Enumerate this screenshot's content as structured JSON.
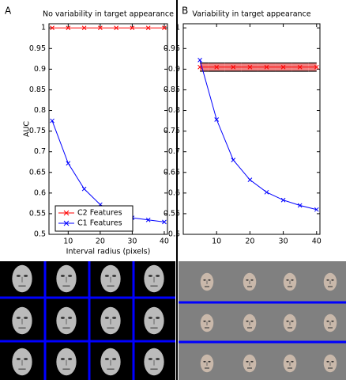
{
  "chart_data": [
    {
      "type": "line",
      "panel": "A",
      "title": "No variability in target appearance",
      "xlabel": "Interval radius (pixels)",
      "ylabel": "AUC",
      "x": [
        5,
        10,
        15,
        20,
        25,
        30,
        35,
        40
      ],
      "series": [
        {
          "name": "C2 Features",
          "color": "#ff0000",
          "values": [
            1,
            1,
            1,
            1,
            1,
            1,
            1,
            1
          ]
        },
        {
          "name": "C1 Features",
          "color": "#0000ff",
          "values": [
            0.775,
            0.672,
            0.61,
            0.572,
            0.548,
            0.54,
            0.535,
            0.53
          ]
        }
      ],
      "xlim": [
        4,
        41
      ],
      "ylim": [
        0.5,
        1.01
      ],
      "xticks": [
        10,
        20,
        30,
        40
      ],
      "yticks": [
        0.5,
        0.55,
        0.6,
        0.65,
        0.7,
        0.75,
        0.8,
        0.85,
        0.9,
        0.95,
        1
      ],
      "legend": "lower left"
    },
    {
      "type": "line",
      "panel": "B",
      "title": "Variability in target appearance",
      "x": [
        5,
        10,
        15,
        20,
        25,
        30,
        35,
        40
      ],
      "series": [
        {
          "color": "#ff0000",
          "values": [
            0.905,
            0.905,
            0.905,
            0.905,
            0.905,
            0.905,
            0.905,
            0.905
          ],
          "errors": [
            0.01,
            0.01,
            0.01,
            0.01,
            0.01,
            0.01,
            0.01,
            0.01
          ]
        },
        {
          "color": "#0000ff",
          "values": [
            0.922,
            0.778,
            0.68,
            0.632,
            0.602,
            0.583,
            0.57,
            0.56
          ]
        }
      ],
      "xlim": [
        0,
        41
      ],
      "ylim": [
        0.5,
        1.01
      ],
      "xticks": [
        10,
        20,
        30,
        40
      ],
      "yticks": [
        0.5,
        0.55,
        0.6,
        0.65,
        0.7,
        0.75,
        0.8,
        0.85,
        0.9,
        0.95,
        1
      ]
    }
  ]
}
